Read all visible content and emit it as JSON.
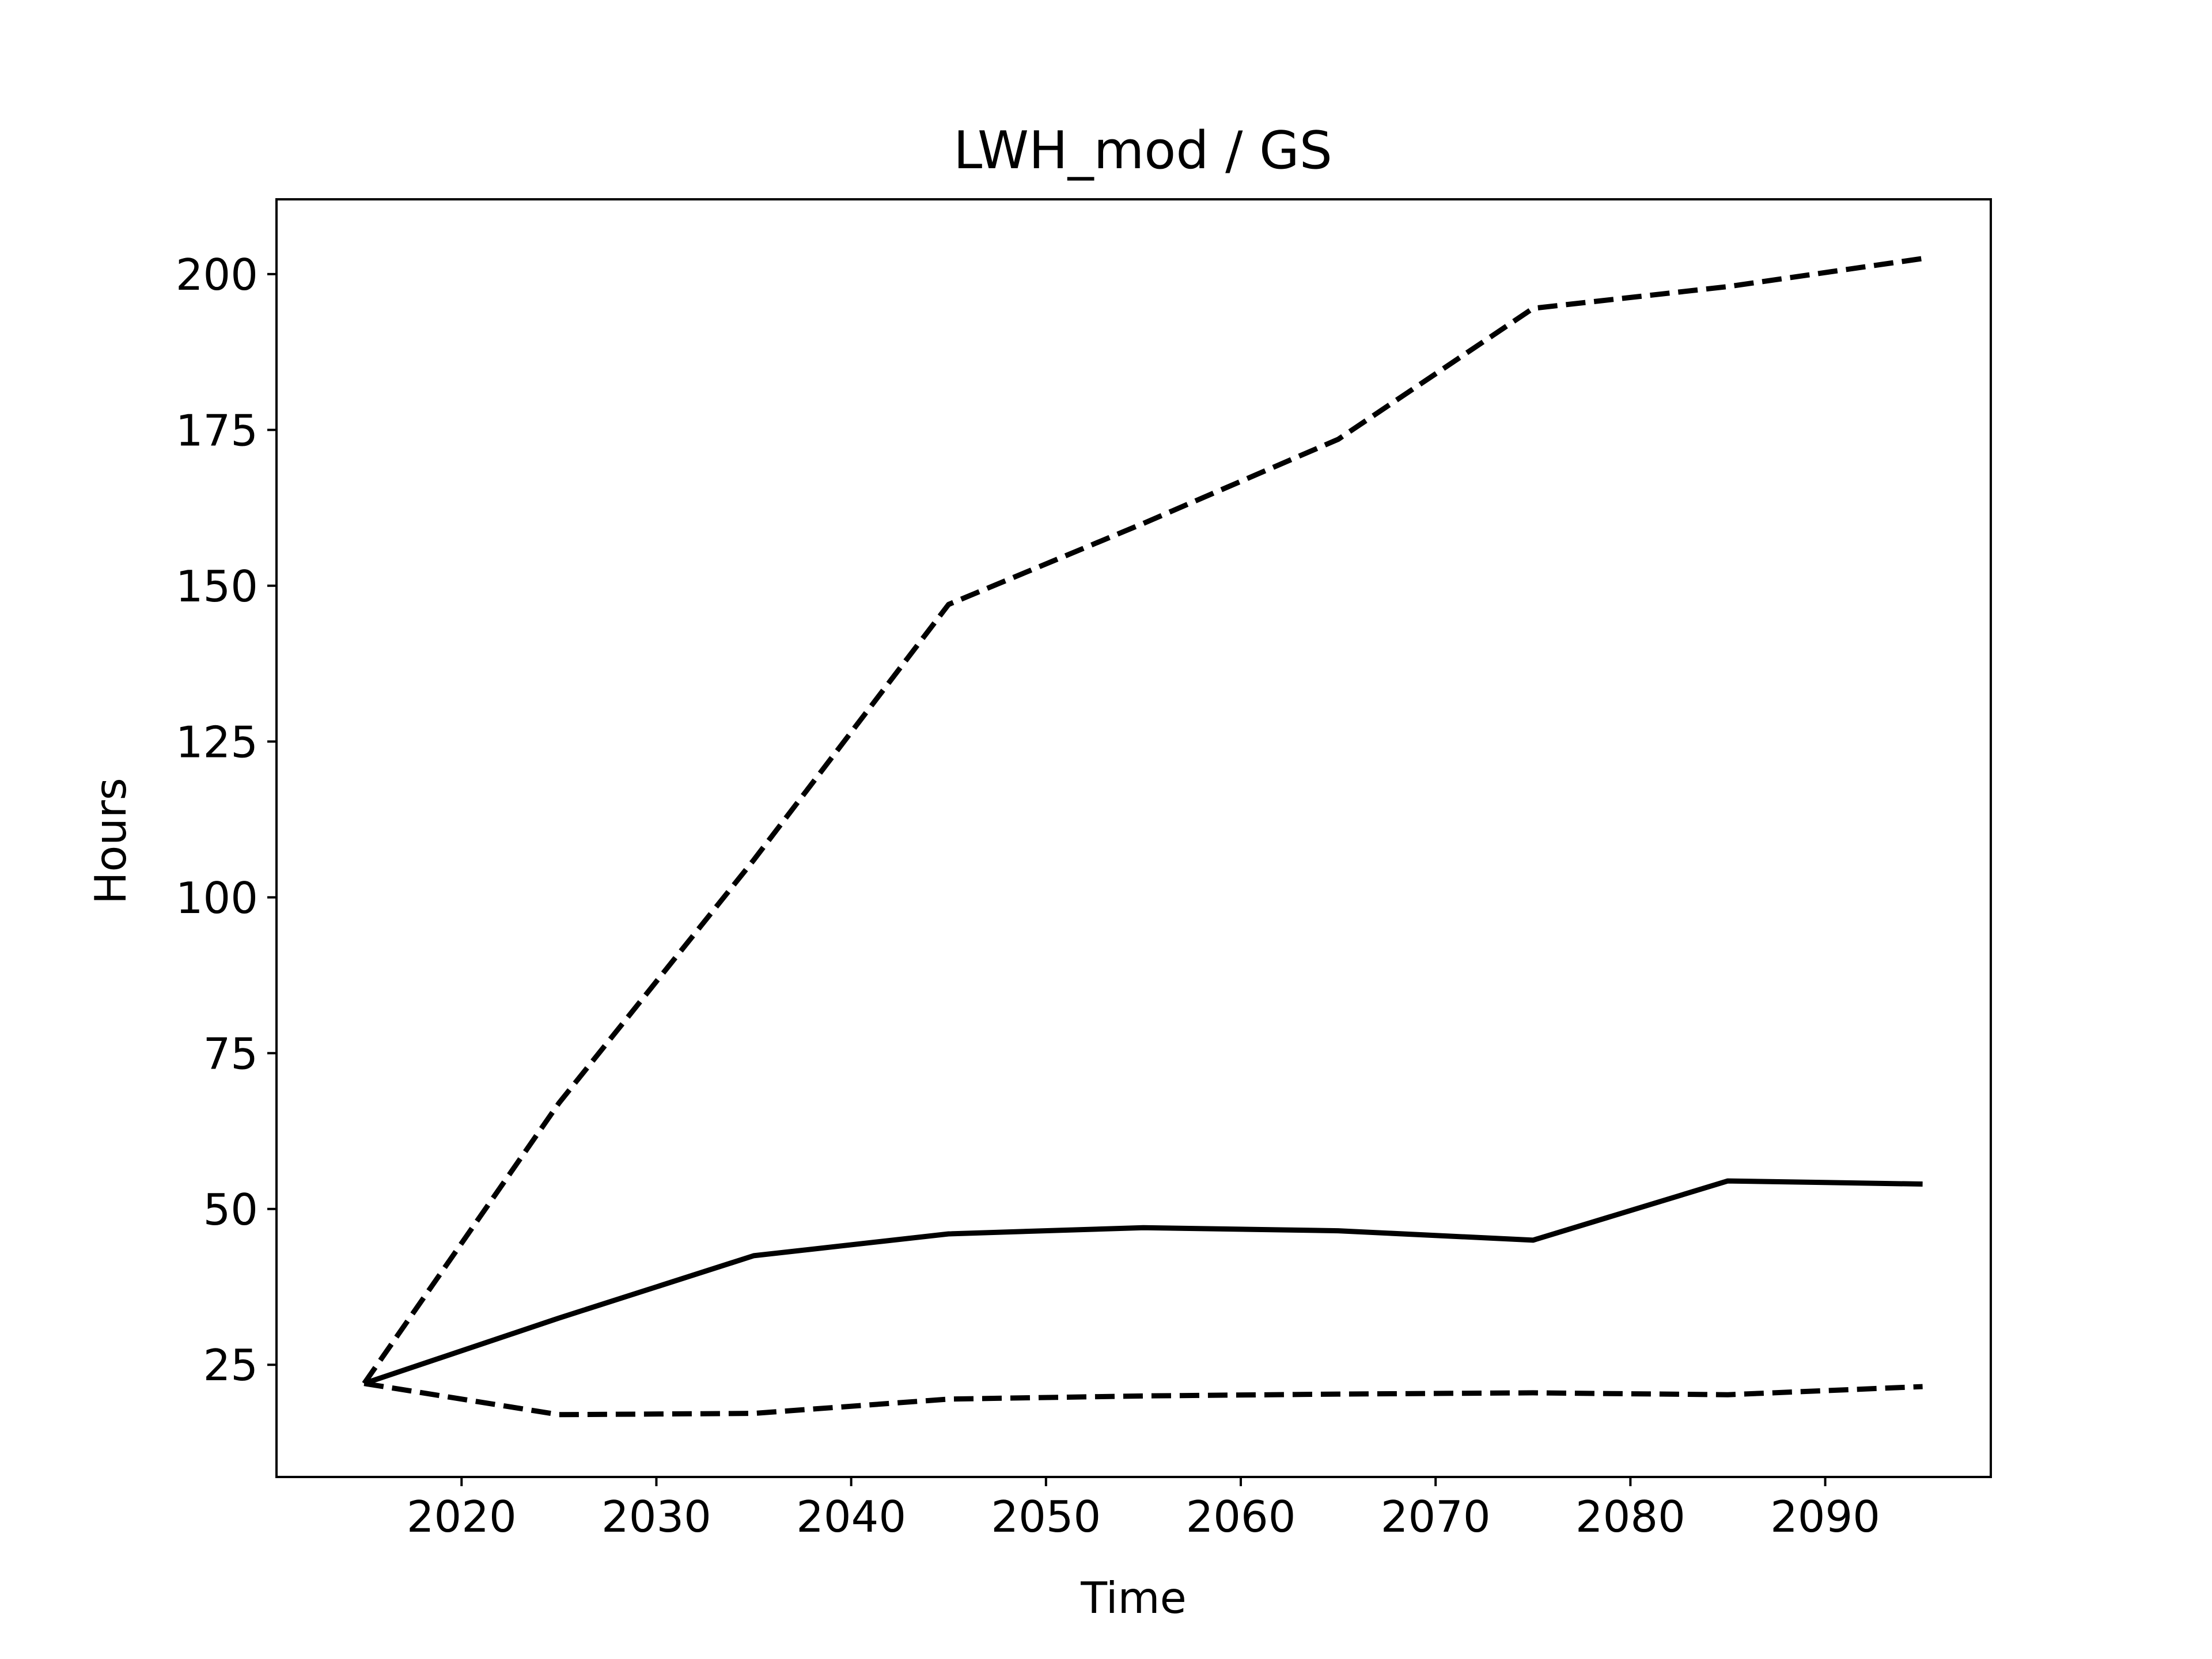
{
  "chart_data": {
    "type": "line",
    "title": "LWH_mod / GS",
    "xlabel": "Time",
    "ylabel": "Hours",
    "xlim": [
      2010.5,
      2098.5
    ],
    "ylim": [
      7,
      212
    ],
    "xticks": [
      2020,
      2030,
      2040,
      2050,
      2060,
      2070,
      2080,
      2090
    ],
    "yticks": [
      25,
      50,
      75,
      100,
      125,
      150,
      175,
      200
    ],
    "grid": false,
    "legend": "none",
    "color": "#000000",
    "series": [
      {
        "style": "dashed",
        "x": [
          2015,
          2025,
          2035,
          2045,
          2055,
          2065,
          2075,
          2085,
          2095
        ],
        "y": [
          22,
          67,
          106,
          147,
          160,
          173.5,
          194.5,
          198,
          202.5
        ]
      },
      {
        "style": "solid",
        "x": [
          2015,
          2025,
          2035,
          2045,
          2055,
          2065,
          2075,
          2085,
          2095
        ],
        "y": [
          22,
          32.5,
          42.5,
          46,
          47,
          46.5,
          45,
          54.5,
          54
        ]
      },
      {
        "style": "dashed",
        "x": [
          2015,
          2025,
          2035,
          2045,
          2055,
          2065,
          2075,
          2085,
          2095
        ],
        "y": [
          22,
          17,
          17.2,
          19.5,
          20,
          20.3,
          20.5,
          20.2,
          21.5
        ]
      }
    ]
  }
}
